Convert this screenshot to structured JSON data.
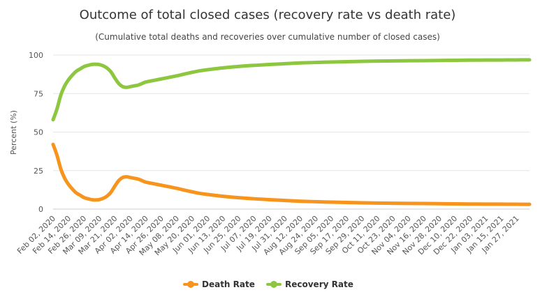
{
  "chart_data": {
    "type": "line",
    "title": "Outcome of total closed cases (recovery rate vs death rate)",
    "subtitle": "(Cumulative total deaths and recoveries over cumulative number of closed cases)",
    "ylabel": "Percent (%)",
    "xlabel": "",
    "ylim": [
      0,
      100
    ],
    "yticks": [
      0,
      25,
      50,
      75,
      100
    ],
    "grid": true,
    "legend_position": "bottom-center",
    "x_tick_labels": [
      "Feb 02, 2020",
      "Feb 14, 2020",
      "Feb 26, 2020",
      "Mar 09, 2020",
      "Mar 21, 2020",
      "Apr 02, 2020",
      "Apr 14, 2020",
      "Apr 26, 2020",
      "May 08, 2020",
      "May 20, 2020",
      "Jun 01, 2020",
      "Jun 13, 2020",
      "Jun 25, 2020",
      "Jul 07, 2020",
      "Jul 19, 2020",
      "Jul 31, 2020",
      "Aug 12, 2020",
      "Aug 24, 2020",
      "Sep 05, 2020",
      "Sep 17, 2020",
      "Sep 29, 2020",
      "Oct 11, 2020",
      "Oct 23, 2020",
      "Nov 04, 2020",
      "Nov 16, 2020",
      "Nov 28, 2020",
      "Dec 10, 2020",
      "Dec 22, 2020",
      "Jan 03, 2021",
      "Jan 15, 2021",
      "Jan 27, 2021"
    ],
    "x": [
      "2020-02-02",
      "2020-02-05",
      "2020-02-08",
      "2020-02-11",
      "2020-02-14",
      "2020-02-17",
      "2020-02-20",
      "2020-02-23",
      "2020-02-26",
      "2020-03-01",
      "2020-03-04",
      "2020-03-07",
      "2020-03-09",
      "2020-03-12",
      "2020-03-15",
      "2020-03-18",
      "2020-03-21",
      "2020-03-24",
      "2020-03-27",
      "2020-03-30",
      "2020-04-02",
      "2020-04-05",
      "2020-04-08",
      "2020-04-11",
      "2020-04-14",
      "2020-04-20",
      "2020-04-26",
      "2020-05-02",
      "2020-05-08",
      "2020-05-14",
      "2020-05-20",
      "2020-05-26",
      "2020-06-01",
      "2020-06-13",
      "2020-06-25",
      "2020-07-07",
      "2020-07-19",
      "2020-07-31",
      "2020-08-12",
      "2020-08-24",
      "2020-09-05",
      "2020-09-17",
      "2020-09-29",
      "2020-10-11",
      "2020-10-23",
      "2020-11-04",
      "2020-11-16",
      "2020-11-28",
      "2020-12-10",
      "2020-12-22",
      "2021-01-03",
      "2021-01-15",
      "2021-01-27",
      "2021-02-06"
    ],
    "series": [
      {
        "name": "Death Rate",
        "color": "#f7941d",
        "values": [
          42,
          35,
          26,
          20,
          16,
          13,
          10.5,
          9,
          7.5,
          6.5,
          6,
          6,
          6.2,
          7,
          8.5,
          11,
          15,
          18.5,
          20.5,
          21,
          20.5,
          20,
          19.5,
          18.5,
          17.5,
          16.5,
          15.5,
          14.5,
          13.5,
          12.3,
          11.2,
          10.2,
          9.5,
          8.3,
          7.4,
          6.7,
          6.1,
          5.6,
          5.1,
          4.8,
          4.5,
          4.3,
          4.1,
          3.9,
          3.8,
          3.7,
          3.6,
          3.5,
          3.4,
          3.3,
          3.25,
          3.2,
          3.15,
          3.1
        ]
      },
      {
        "name": "Recovery Rate",
        "color": "#8dc63f",
        "values": [
          58,
          65,
          74,
          80,
          84,
          87,
          89.5,
          91,
          92.5,
          93.5,
          94,
          94,
          93.8,
          93,
          91.5,
          89,
          85,
          81.5,
          79.5,
          79,
          79.5,
          80,
          80.5,
          81.5,
          82.5,
          83.5,
          84.5,
          85.5,
          86.5,
          87.7,
          88.8,
          89.8,
          90.5,
          91.7,
          92.6,
          93.3,
          93.9,
          94.4,
          94.9,
          95.2,
          95.5,
          95.7,
          95.9,
          96.1,
          96.2,
          96.3,
          96.4,
          96.5,
          96.6,
          96.7,
          96.75,
          96.8,
          96.85,
          96.9
        ]
      }
    ]
  }
}
